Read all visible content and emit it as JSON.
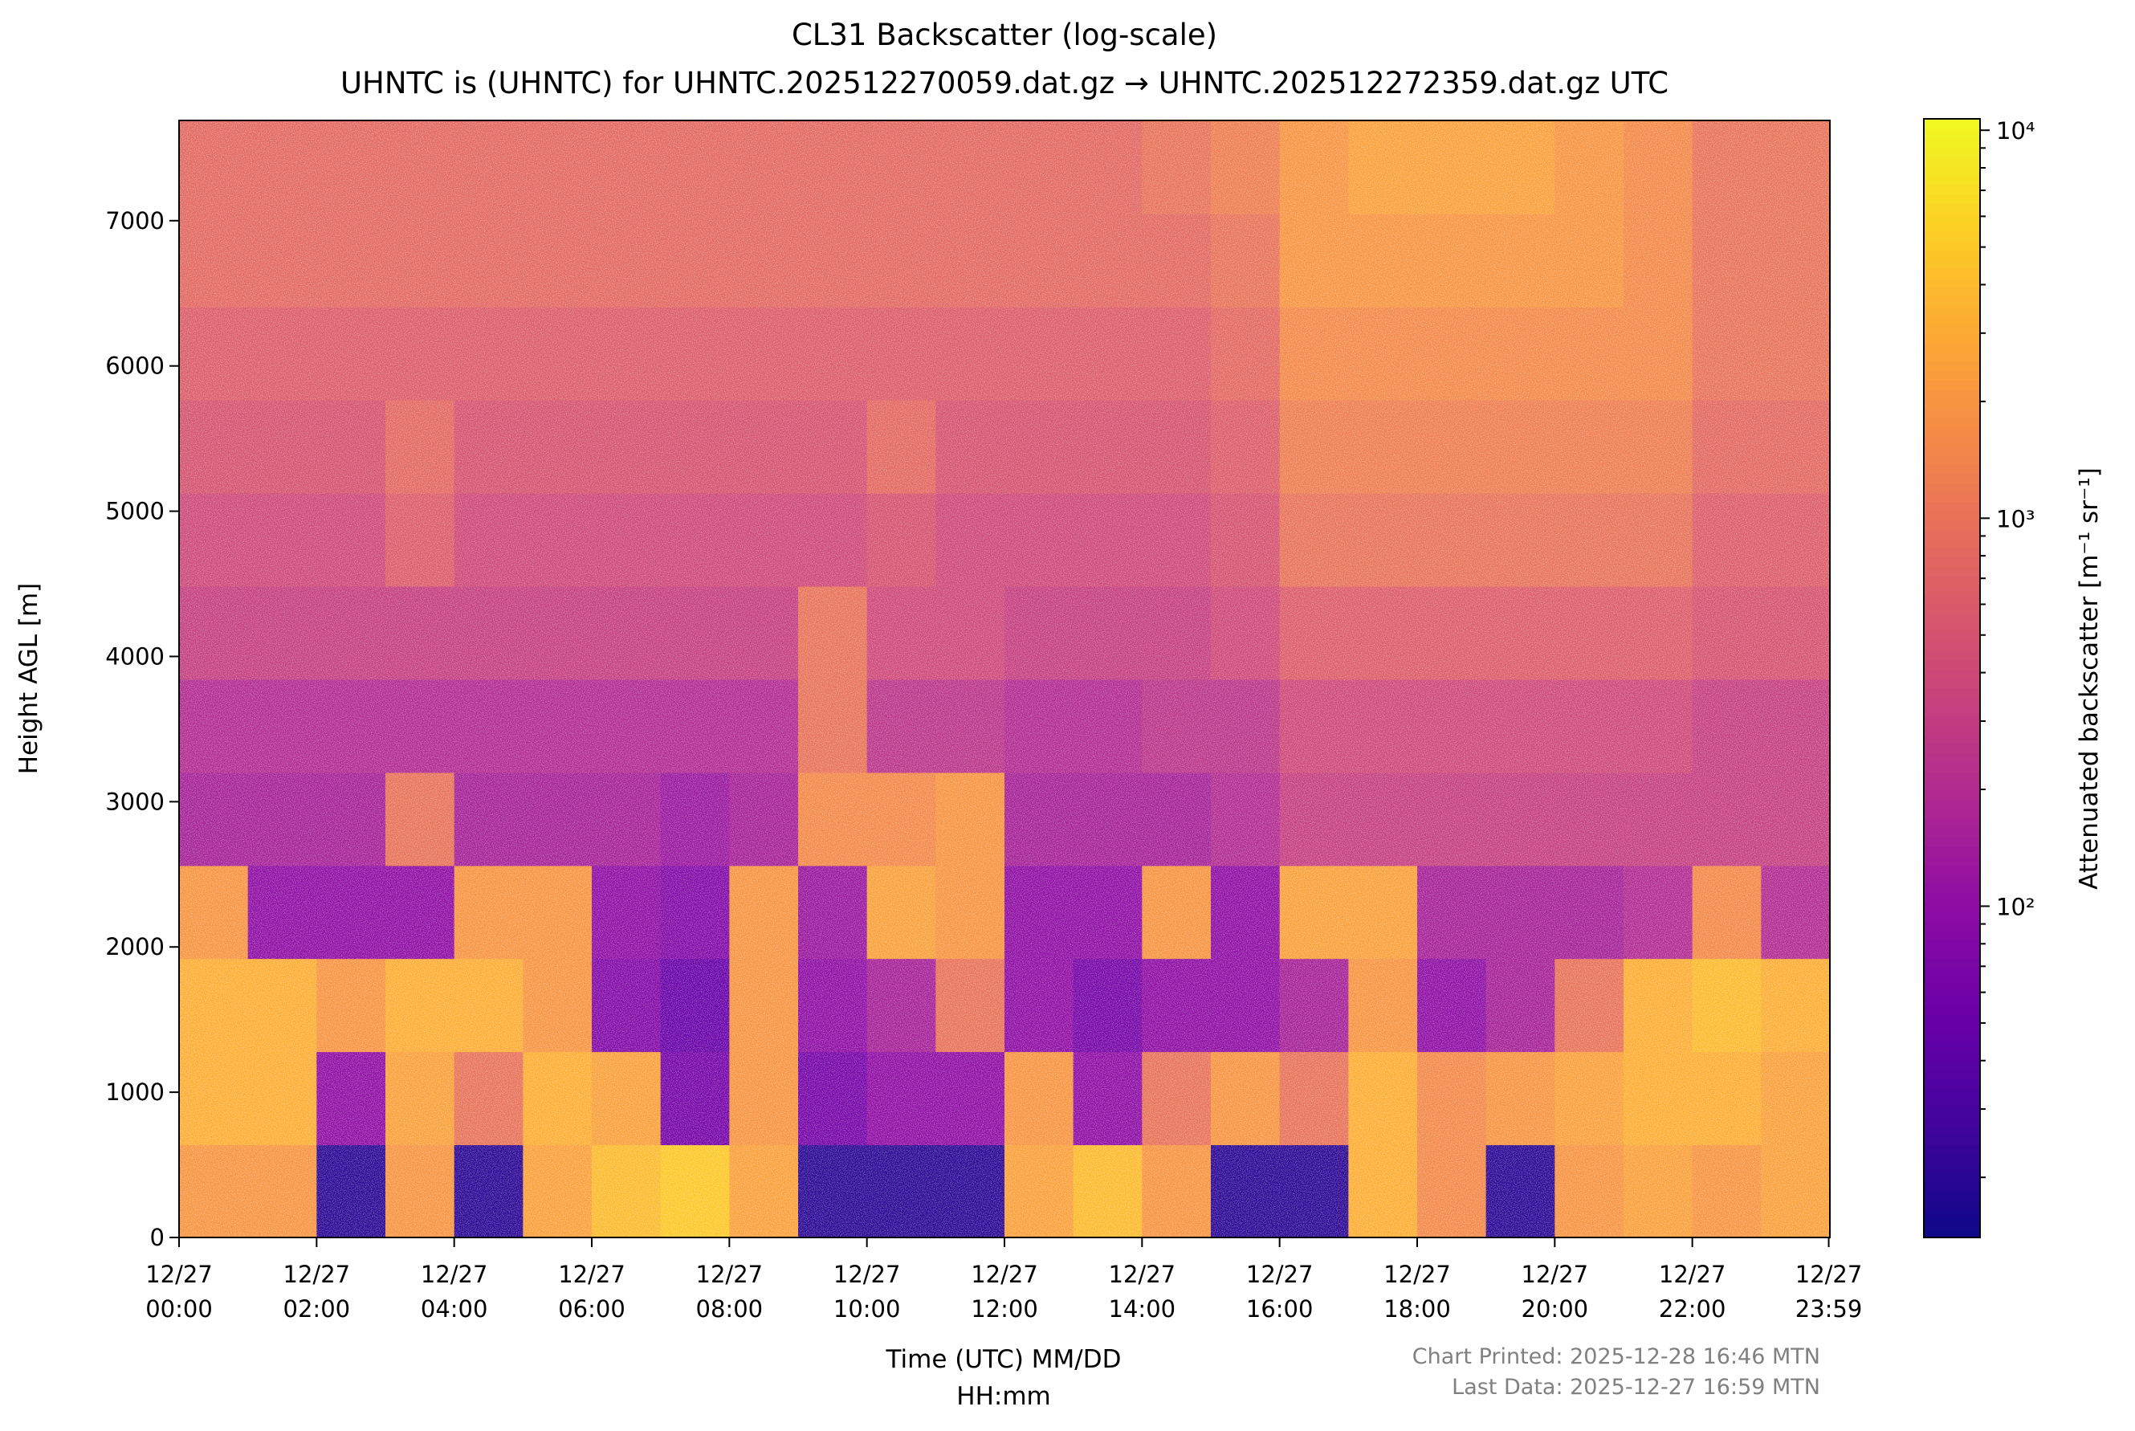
{
  "chart_data": {
    "type": "heatmap",
    "title": "CL31 Backscatter (log-scale)",
    "subtitle": "UHNTC is (UHNTC) for UHNTC.202512270059.dat.gz → UHNTC.202512272359.dat.gz UTC",
    "xlabel_line1": "Time (UTC) MM/DD",
    "xlabel_line2": "HH:mm",
    "ylabel": "Height AGL [m]",
    "xlim_hours": [
      0,
      24
    ],
    "ylim": [
      0,
      7690
    ],
    "x_ticks": [
      {
        "hour": 0,
        "date": "12/27",
        "time": "00:00"
      },
      {
        "hour": 2,
        "date": "12/27",
        "time": "02:00"
      },
      {
        "hour": 4,
        "date": "12/27",
        "time": "04:00"
      },
      {
        "hour": 6,
        "date": "12/27",
        "time": "06:00"
      },
      {
        "hour": 8,
        "date": "12/27",
        "time": "08:00"
      },
      {
        "hour": 10,
        "date": "12/27",
        "time": "10:00"
      },
      {
        "hour": 12,
        "date": "12/27",
        "time": "12:00"
      },
      {
        "hour": 14,
        "date": "12/27",
        "time": "14:00"
      },
      {
        "hour": 16,
        "date": "12/27",
        "time": "16:00"
      },
      {
        "hour": 18,
        "date": "12/27",
        "time": "18:00"
      },
      {
        "hour": 20,
        "date": "12/27",
        "time": "20:00"
      },
      {
        "hour": 22,
        "date": "12/27",
        "time": "22:00"
      },
      {
        "hour": 23.983,
        "date": "12/27",
        "time": "23:59"
      }
    ],
    "y_ticks": [
      0,
      1000,
      2000,
      3000,
      4000,
      5000,
      6000,
      7000
    ],
    "colorbar": {
      "label": "Attenuated backscatter [m⁻¹ sr⁻¹]",
      "scale": "log",
      "colormap": "plasma",
      "range": [
        14,
        10700
      ],
      "ticks": [
        {
          "value": 100,
          "label": "10²"
        },
        {
          "value": 1000,
          "label": "10³"
        },
        {
          "value": 10000,
          "label": "10⁴"
        }
      ]
    },
    "grid_note_units": "log10 backscatter; rows bottom-to-top, columns = hourly bins",
    "height_bin_edges": [
      0,
      641,
      1282,
      1923,
      2563,
      3204,
      3845,
      4486,
      5127,
      5768,
      6408,
      7049,
      7690
    ],
    "log10_values": [
      [
        3.3,
        3.3,
        1.3,
        3.3,
        1.3,
        3.4,
        3.6,
        3.7,
        3.4,
        1.3,
        1.3,
        1.3,
        3.4,
        3.6,
        3.3,
        1.3,
        1.3,
        3.5,
        3.2,
        1.3,
        3.3,
        3.4,
        3.3,
        3.4
      ],
      [
        3.5,
        3.5,
        2.0,
        3.4,
        3.0,
        3.5,
        3.4,
        1.8,
        3.3,
        1.8,
        2.0,
        2.0,
        3.3,
        2.0,
        3.0,
        3.3,
        3.0,
        3.5,
        3.2,
        3.3,
        3.4,
        3.5,
        3.5,
        3.4
      ],
      [
        3.5,
        3.5,
        3.3,
        3.5,
        3.5,
        3.3,
        1.9,
        1.7,
        3.3,
        2.0,
        2.2,
        3.0,
        2.0,
        1.8,
        2.0,
        2.0,
        2.2,
        3.3,
        2.0,
        2.2,
        3.0,
        3.5,
        3.6,
        3.5
      ],
      [
        3.3,
        2.0,
        2.0,
        2.0,
        3.3,
        3.3,
        2.0,
        1.9,
        3.3,
        2.1,
        3.4,
        3.3,
        2.0,
        2.0,
        3.3,
        2.0,
        3.4,
        3.4,
        2.2,
        2.2,
        2.2,
        2.3,
        3.2,
        2.3
      ],
      [
        2.2,
        2.2,
        2.2,
        3.0,
        2.2,
        2.2,
        2.2,
        2.1,
        2.2,
        3.2,
        3.2,
        3.3,
        2.2,
        2.2,
        2.2,
        2.3,
        2.5,
        2.5,
        2.5,
        2.5,
        2.5,
        2.5,
        2.5,
        2.5
      ],
      [
        2.3,
        2.3,
        2.3,
        2.3,
        2.3,
        2.3,
        2.3,
        2.3,
        2.3,
        3.0,
        2.4,
        2.4,
        2.3,
        2.3,
        2.4,
        2.4,
        2.6,
        2.6,
        2.6,
        2.6,
        2.6,
        2.6,
        2.5,
        2.5
      ],
      [
        2.5,
        2.5,
        2.5,
        2.5,
        2.5,
        2.5,
        2.5,
        2.5,
        2.5,
        3.0,
        2.6,
        2.6,
        2.5,
        2.5,
        2.5,
        2.6,
        2.8,
        2.8,
        2.8,
        2.8,
        2.8,
        2.8,
        2.7,
        2.7
      ],
      [
        2.6,
        2.6,
        2.6,
        2.8,
        2.6,
        2.6,
        2.6,
        2.6,
        2.6,
        2.6,
        2.7,
        2.6,
        2.6,
        2.6,
        2.6,
        2.7,
        3.0,
        3.0,
        3.0,
        3.0,
        3.0,
        3.0,
        2.8,
        2.8
      ],
      [
        2.7,
        2.7,
        2.7,
        2.9,
        2.7,
        2.7,
        2.7,
        2.7,
        2.7,
        2.7,
        2.9,
        2.7,
        2.7,
        2.7,
        2.7,
        2.8,
        3.1,
        3.1,
        3.1,
        3.1,
        3.1,
        3.1,
        2.9,
        2.9
      ],
      [
        2.8,
        2.8,
        2.8,
        2.8,
        2.8,
        2.8,
        2.8,
        2.8,
        2.8,
        2.8,
        2.8,
        2.8,
        2.8,
        2.8,
        2.8,
        2.9,
        3.2,
        3.2,
        3.2,
        3.2,
        3.2,
        3.2,
        3.0,
        3.0
      ],
      [
        2.9,
        2.9,
        2.9,
        2.9,
        2.9,
        2.9,
        2.9,
        2.9,
        2.9,
        2.9,
        2.9,
        2.9,
        2.9,
        2.9,
        2.9,
        3.0,
        3.3,
        3.3,
        3.3,
        3.3,
        3.3,
        3.2,
        3.0,
        3.0
      ],
      [
        2.9,
        2.9,
        2.9,
        2.9,
        2.9,
        2.9,
        2.9,
        2.9,
        2.9,
        2.9,
        2.9,
        2.9,
        2.9,
        2.9,
        3.0,
        3.1,
        3.3,
        3.4,
        3.4,
        3.4,
        3.3,
        3.2,
        3.0,
        3.0
      ]
    ]
  },
  "footer": {
    "printed": "Chart Printed: 2025-12-28 16:46 MTN",
    "last_data": "Last Data: 2025-12-27 16:59 MTN"
  }
}
